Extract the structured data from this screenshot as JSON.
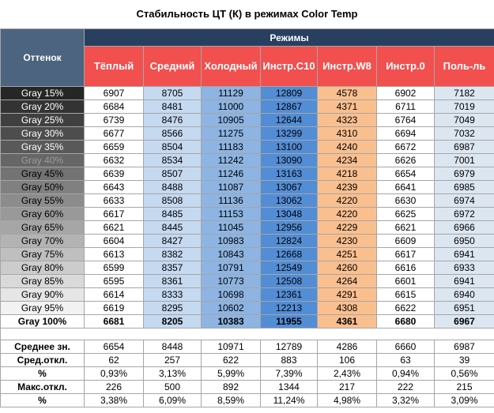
{
  "title": "Стабильность ЦТ (К) в режимах Color Temp",
  "header": {
    "shade": "Оттенок",
    "modes": "Режимы",
    "columns": [
      "Тёплый",
      "Средний",
      "Холодный",
      "Инстр.C10",
      "Инстр.W8",
      "Инстр.0",
      "Поль-ль"
    ]
  },
  "rows": [
    {
      "label": "Gray 15%",
      "values": [
        6907,
        8705,
        11129,
        12809,
        4578,
        6902,
        7182
      ]
    },
    {
      "label": "Gray 20%",
      "values": [
        6684,
        8481,
        11000,
        12867,
        4371,
        6711,
        7019
      ]
    },
    {
      "label": "Gray 25%",
      "values": [
        6739,
        8476,
        10905,
        12644,
        4323,
        6764,
        7049
      ]
    },
    {
      "label": "Gray 30%",
      "values": [
        6677,
        8566,
        11275,
        13299,
        4310,
        6694,
        7032
      ]
    },
    {
      "label": "Gray 35%",
      "values": [
        6659,
        8504,
        11183,
        13100,
        4240,
        6672,
        6987
      ]
    },
    {
      "label": "Gray 40%",
      "values": [
        6632,
        8534,
        11242,
        13090,
        4234,
        6626,
        7001
      ]
    },
    {
      "label": "Gray 45%",
      "values": [
        6639,
        8507,
        11246,
        13163,
        4218,
        6654,
        6979
      ]
    },
    {
      "label": "Gray 50%",
      "values": [
        6643,
        8488,
        11087,
        13067,
        4239,
        6641,
        6985
      ]
    },
    {
      "label": "Gray 55%",
      "values": [
        6633,
        8508,
        11136,
        13062,
        4220,
        6630,
        6974
      ]
    },
    {
      "label": "Gray 60%",
      "values": [
        6617,
        8485,
        11153,
        13048,
        4220,
        6625,
        6972
      ]
    },
    {
      "label": "Gray 65%",
      "values": [
        6621,
        8445,
        11045,
        12956,
        4229,
        6621,
        6966
      ]
    },
    {
      "label": "Gray 70%",
      "values": [
        6604,
        8427,
        10983,
        12824,
        4230,
        6609,
        6950
      ]
    },
    {
      "label": "Gray 75%",
      "values": [
        6613,
        8382,
        10843,
        12668,
        4251,
        6617,
        6941
      ]
    },
    {
      "label": "Gray 80%",
      "values": [
        6599,
        8357,
        10791,
        12549,
        4260,
        6616,
        6933
      ]
    },
    {
      "label": "Gray 85%",
      "values": [
        6595,
        8361,
        10773,
        12508,
        4264,
        6601,
        6941
      ]
    },
    {
      "label": "Gray 90%",
      "values": [
        6614,
        8333,
        10698,
        12361,
        4291,
        6615,
        6940
      ]
    },
    {
      "label": "Gray 95%",
      "values": [
        6619,
        8295,
        10602,
        12213,
        4308,
        6622,
        6951
      ]
    },
    {
      "label": "Gray 100%",
      "values": [
        6681,
        8205,
        10383,
        11955,
        4361,
        6680,
        6967
      ]
    }
  ],
  "stats": [
    {
      "label": "Среднее зн.",
      "values": [
        6654,
        8448,
        10971,
        12789,
        4286,
        6660,
        6987
      ]
    },
    {
      "label": "Сред.откл.",
      "values": [
        62,
        257,
        622,
        883,
        106,
        63,
        39
      ]
    },
    {
      "label": "%",
      "values": [
        "0,93%",
        "3,13%",
        "5,99%",
        "7,39%",
        "2,43%",
        "0,94%",
        "0,56%"
      ]
    },
    {
      "label": "Макс.откл.",
      "values": [
        226,
        500,
        892,
        1344,
        217,
        222,
        215
      ]
    },
    {
      "label": "%",
      "values": [
        "3,38%",
        "6,09%",
        "8,59%",
        "11,24%",
        "4,98%",
        "3,32%",
        "3,09%"
      ]
    }
  ]
}
